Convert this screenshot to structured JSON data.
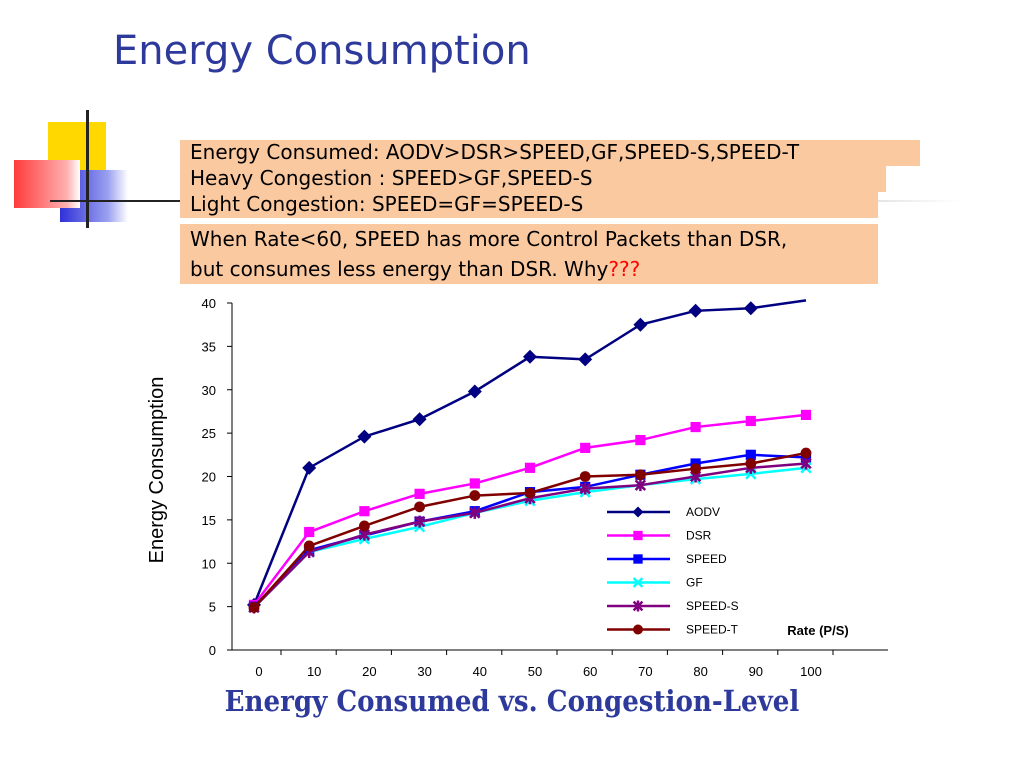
{
  "slide": {
    "title": "Energy Consumption",
    "bottom_title": "Energy Consumed vs. Congestion-Level",
    "box_lines": [
      "Energy Consumed: AODV>DSR>SPEED,GF,SPEED-S,SPEED-T",
      "Heavy Congestion : SPEED>GF,SPEED-S",
      "Light Congestion: SPEED=GF=SPEED-S"
    ],
    "note_line1": "When Rate<60, SPEED has more Control Packets than DSR,",
    "note_line2": "but consumes less energy than DSR. Why",
    "note_qmarks": "???",
    "colors": {
      "title": "#2d3a9c",
      "box_bg": "#fbc9a0",
      "qmarks": "#ff0000"
    }
  },
  "chart_data": {
    "type": "line",
    "x": [
      0,
      10,
      20,
      30,
      40,
      50,
      60,
      70,
      80,
      90,
      100
    ],
    "xlim": [
      0,
      100
    ],
    "ylim": [
      0,
      40
    ],
    "xticks": [
      "0",
      "10",
      "20",
      "30",
      "40",
      "50",
      "60",
      "70",
      "80",
      "90",
      "100"
    ],
    "yticks": [
      "0",
      "5",
      "10",
      "15",
      "20",
      "25",
      "30",
      "35",
      "40"
    ],
    "xlabel": "Rate (P/S)",
    "ylabel": "Energy Consumption",
    "legend_position": "right",
    "grid": false,
    "series": [
      {
        "name": "AODV",
        "color": "#000080",
        "marker": "diamond",
        "values": [
          5.2,
          21.0,
          24.6,
          26.6,
          29.8,
          33.8,
          33.5,
          37.5,
          39.1,
          39.4,
          40.3
        ]
      },
      {
        "name": "DSR",
        "color": "#ff00ff",
        "marker": "square",
        "values": [
          5.2,
          13.6,
          16.0,
          18.0,
          19.2,
          21.0,
          23.3,
          24.2,
          25.7,
          26.4,
          27.1
        ]
      },
      {
        "name": "SPEED",
        "color": "#0000ff",
        "marker": "square",
        "values": [
          5.0,
          11.5,
          13.2,
          14.8,
          16.0,
          18.2,
          18.8,
          20.2,
          21.5,
          22.5,
          22.2
        ]
      },
      {
        "name": "GF",
        "color": "#00ffff",
        "marker": "x",
        "values": [
          4.9,
          11.3,
          12.8,
          14.2,
          15.8,
          17.2,
          18.2,
          19.0,
          19.7,
          20.3,
          21.0
        ]
      },
      {
        "name": "SPEED-S",
        "color": "#800080",
        "marker": "star",
        "values": [
          4.9,
          11.3,
          13.3,
          14.8,
          15.8,
          17.5,
          18.6,
          19.0,
          20.0,
          21.0,
          21.5
        ]
      },
      {
        "name": "SPEED-T",
        "color": "#800000",
        "marker": "circle",
        "values": [
          4.9,
          12.0,
          14.3,
          16.5,
          17.8,
          18.1,
          20.0,
          20.2,
          20.9,
          21.5,
          22.7
        ]
      }
    ]
  }
}
